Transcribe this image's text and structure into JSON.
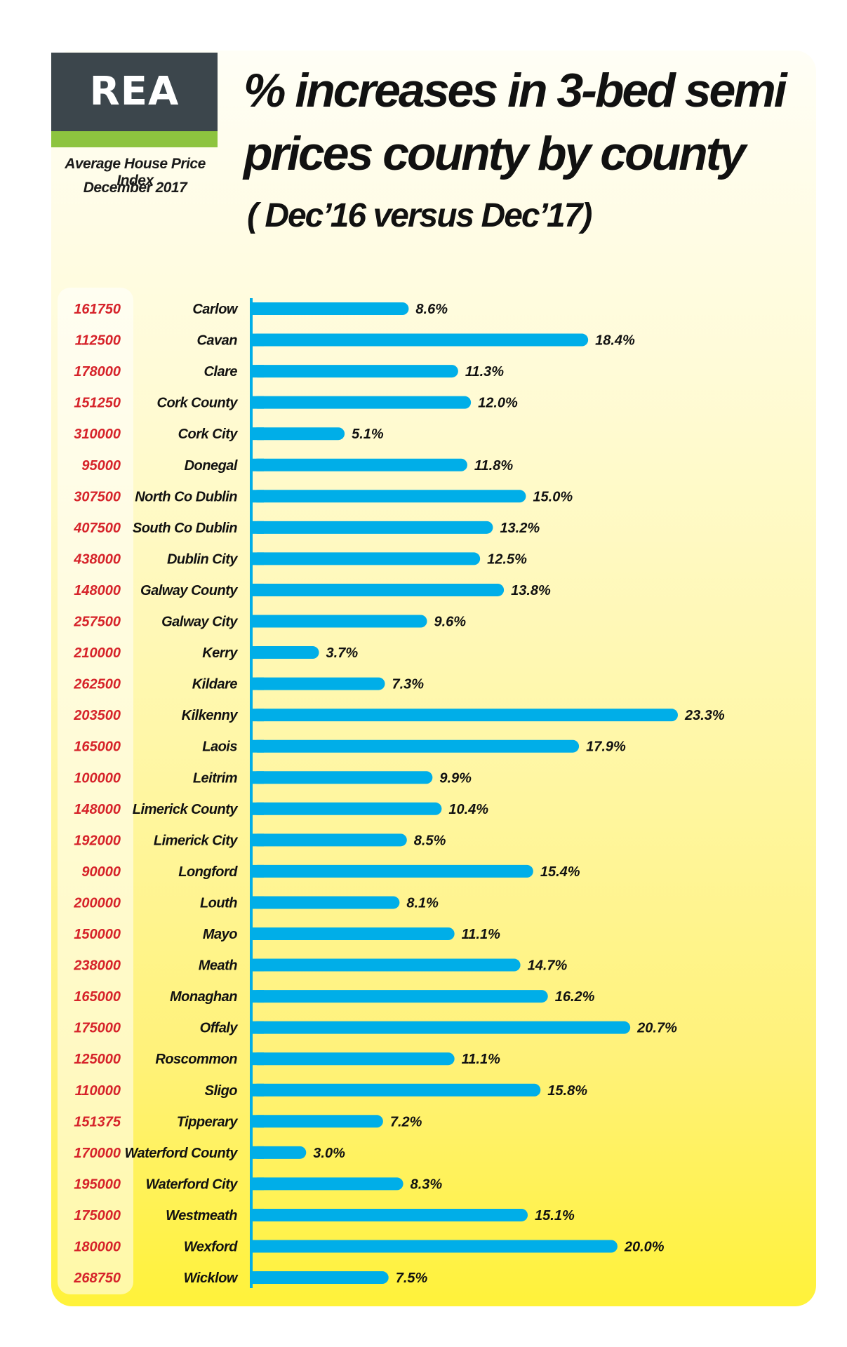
{
  "brand": {
    "logo": "REA",
    "subtitle_line1": "Average House Price Index",
    "subtitle_line2": "December 2017",
    "colors": {
      "logo_bg": "#3c464c",
      "logo_stripe": "#8dc43f",
      "bar": "#00aee8",
      "price_text": "#d6232a"
    }
  },
  "chart_data": {
    "type": "bar",
    "orientation": "horizontal",
    "title_line1": "% increases  in 3-bed semi",
    "title_line2": "prices county by county",
    "subtitle": "( Dec’16 versus Dec’17)",
    "xlim": [
      0,
      23.3
    ],
    "categories": [
      "Carlow",
      "Cavan",
      "Clare",
      "Cork County",
      "Cork City",
      "Donegal",
      "North Co Dublin",
      "South Co Dublin",
      "Dublin City",
      "Galway County",
      "Galway City",
      "Kerry",
      "Kildare",
      "Kilkenny",
      "Laois",
      "Leitrim",
      "Limerick County",
      "Limerick City",
      "Longford",
      "Louth",
      "Mayo",
      "Meath",
      "Monaghan",
      "Offaly",
      "Roscommon",
      "Sligo",
      "Tipperary",
      "Waterford County",
      "Waterford City",
      "Westmeath",
      "Wexford",
      "Wicklow"
    ],
    "values": [
      8.6,
      18.4,
      11.3,
      12.0,
      5.1,
      11.8,
      15.0,
      13.2,
      12.5,
      13.8,
      9.6,
      3.7,
      7.3,
      23.3,
      17.9,
      9.9,
      10.4,
      8.5,
      15.4,
      8.1,
      11.1,
      14.7,
      16.2,
      20.7,
      11.1,
      15.8,
      7.2,
      3.0,
      8.3,
      15.1,
      20.0,
      7.5
    ],
    "labels": [
      "8.6%",
      "18.4%",
      "11.3%",
      "12.0%",
      "5.1%",
      "11.8%",
      "15.0%",
      "13.2%",
      "12.5%",
      "13.8%",
      "9.6%",
      "3.7%",
      "7.3%",
      "23.3%",
      "17.9%",
      "9.9%",
      "10.4%",
      "8.5%",
      "15.4%",
      "8.1%",
      "11.1%",
      "14.7%",
      "16.2%",
      "20.7%",
      "11.1%",
      "15.8%",
      "7.2%",
      "3.0%",
      "8.3%",
      "15.1%",
      "20.0%",
      "7.5%"
    ],
    "prices": [
      "161750",
      "112500",
      "178000",
      "151250",
      "310000",
      "95000",
      "307500",
      "407500",
      "438000",
      "148000",
      "257500",
      "210000",
      "262500",
      "203500",
      "165000",
      "100000",
      "148000",
      "192000",
      "90000",
      "200000",
      "150000",
      "238000",
      "165000",
      "175000",
      "125000",
      "110000",
      "151375",
      "170000",
      "195000",
      "175000",
      "180000",
      "268750"
    ]
  }
}
